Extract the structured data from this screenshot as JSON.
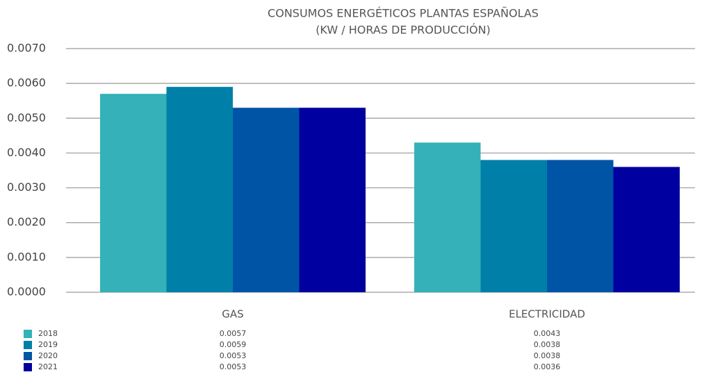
{
  "chart_data": {
    "type": "bar",
    "title": "CONSUMOS ENERGÉTICOS PLANTAS ESPAÑOLAS",
    "subtitle": "(KW / HORAS DE PRODUCCIÓN)",
    "categories": [
      "GAS",
      "ELECTRICIDAD"
    ],
    "series": [
      {
        "name": "2018",
        "color": "#34b1b9",
        "values": [
          0.0057,
          0.0043
        ]
      },
      {
        "name": "2019",
        "color": "#0080a8",
        "values": [
          0.0059,
          0.0038
        ]
      },
      {
        "name": "2020",
        "color": "#0054a6",
        "values": [
          0.0053,
          0.0038
        ]
      },
      {
        "name": "2021",
        "color": "#0000a0",
        "values": [
          0.0053,
          0.0036
        ]
      }
    ],
    "ylim": [
      0,
      0.007
    ],
    "yticks": [
      {
        "value": 0,
        "label": "0.0000"
      },
      {
        "value": 0.001,
        "label": "0.0010"
      },
      {
        "value": 0.002,
        "label": "0.0020"
      },
      {
        "value": 0.003,
        "label": "0.0030"
      },
      {
        "value": 0.004,
        "label": "0.0040"
      },
      {
        "value": 0.005,
        "label": "0.0050"
      },
      {
        "value": 0.006,
        "label": "0.0060"
      },
      {
        "value": 0.007,
        "label": "0.0070"
      }
    ],
    "grid": true
  }
}
